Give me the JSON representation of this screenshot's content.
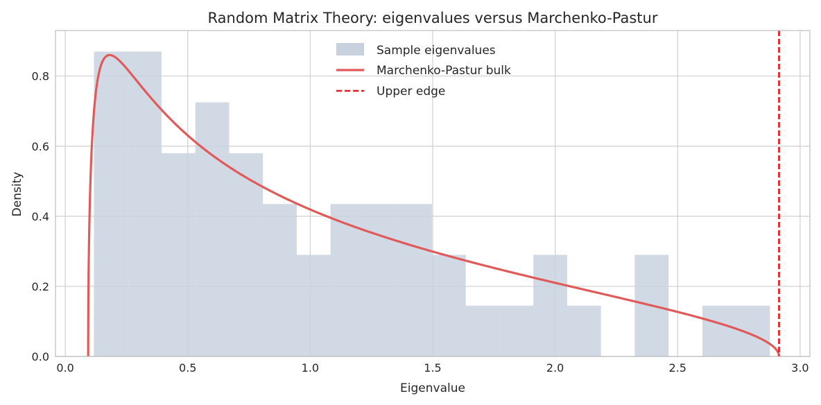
{
  "chart_data": {
    "type": "histogram_with_line",
    "title": "Random Matrix Theory: eigenvalues versus Marchenko-Pastur",
    "xlabel": "Eigenvalue",
    "ylabel": "Density",
    "xlim": [
      -0.04,
      3.04
    ],
    "ylim": [
      0,
      0.93
    ],
    "xticks": [
      0.0,
      0.5,
      1.0,
      1.5,
      2.0,
      2.5,
      3.0
    ],
    "xtick_labels": [
      "0.0",
      "0.5",
      "1.0",
      "1.5",
      "2.0",
      "2.5",
      "3.0"
    ],
    "yticks": [
      0.0,
      0.2,
      0.4,
      0.6,
      0.8
    ],
    "ytick_labels": [
      "0.0",
      "0.2",
      "0.4",
      "0.6",
      "0.8"
    ],
    "grid": true,
    "legend_position": "top-center",
    "histogram": {
      "name": "Sample eigenvalues",
      "color": "#c8d2df",
      "bin_edges": [
        0.117,
        0.255,
        0.393,
        0.531,
        0.669,
        0.807,
        0.945,
        1.083,
        1.221,
        1.359,
        1.497,
        1.635,
        1.773,
        1.911,
        2.049,
        2.187,
        2.325,
        2.463,
        2.601,
        2.739,
        2.877
      ],
      "densities": [
        0.87,
        0.87,
        0.58,
        0.725,
        0.58,
        0.435,
        0.29,
        0.435,
        0.435,
        0.435,
        0.29,
        0.145,
        0.145,
        0.29,
        0.145,
        0.0,
        0.29,
        0.0,
        0.145,
        0.145
      ]
    },
    "mp_curve": {
      "name": "Marchenko-Pastur bulk",
      "color": "#e05a5a",
      "lambda_minus": 0.0935,
      "lambda_plus": 2.914,
      "ratio": 0.5
    },
    "upper_edge": {
      "name": "Upper edge",
      "color": "#e8161b",
      "x": 2.914
    }
  }
}
